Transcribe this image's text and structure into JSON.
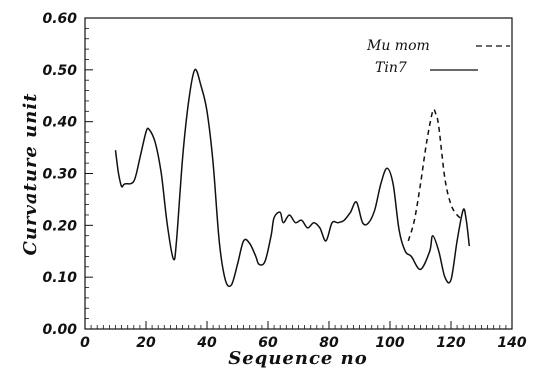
{
  "chart_data": {
    "type": "line",
    "title": "",
    "xlabel": "Sequence no",
    "ylabel": "Curvature unit",
    "xlim": [
      0,
      140
    ],
    "ylim": [
      0.0,
      0.6
    ],
    "x_ticks": [
      0,
      20,
      40,
      60,
      80,
      100,
      120,
      140
    ],
    "y_ticks": [
      0.0,
      0.1,
      0.2,
      0.3,
      0.4,
      0.5,
      0.6
    ],
    "x_tick_labels": [
      "0",
      "20",
      "40",
      "60",
      "80",
      "100",
      "120",
      "140"
    ],
    "y_tick_labels": [
      "0.00",
      "0.10",
      "0.20",
      "0.30",
      "0.40",
      "0.50",
      "0.60"
    ],
    "grid": false,
    "legend_position": "top-right",
    "series": [
      {
        "name": "Mu mom",
        "style": "dashed",
        "color": "#111111",
        "points": [
          [
            106,
            0.17
          ],
          [
            108,
            0.21
          ],
          [
            110,
            0.28
          ],
          [
            112,
            0.36
          ],
          [
            114,
            0.42
          ],
          [
            115,
            0.415
          ],
          [
            116,
            0.39
          ],
          [
            118,
            0.29
          ],
          [
            120,
            0.24
          ],
          [
            122,
            0.22
          ],
          [
            124,
            0.21
          ]
        ]
      },
      {
        "name": "Tin7",
        "style": "solid",
        "color": "#111111",
        "points": [
          [
            10,
            0.345
          ],
          [
            11,
            0.3
          ],
          [
            12,
            0.275
          ],
          [
            13,
            0.28
          ],
          [
            16,
            0.285
          ],
          [
            18,
            0.33
          ],
          [
            20,
            0.38
          ],
          [
            21,
            0.385
          ],
          [
            23,
            0.36
          ],
          [
            25,
            0.3
          ],
          [
            27,
            0.2
          ],
          [
            29,
            0.135
          ],
          [
            30,
            0.17
          ],
          [
            32,
            0.33
          ],
          [
            34,
            0.44
          ],
          [
            36,
            0.5
          ],
          [
            38,
            0.47
          ],
          [
            40,
            0.42
          ],
          [
            42,
            0.32
          ],
          [
            44,
            0.17
          ],
          [
            46,
            0.095
          ],
          [
            48,
            0.085
          ],
          [
            50,
            0.125
          ],
          [
            52,
            0.17
          ],
          [
            54,
            0.165
          ],
          [
            56,
            0.14
          ],
          [
            57,
            0.125
          ],
          [
            59,
            0.13
          ],
          [
            61,
            0.18
          ],
          [
            62,
            0.215
          ],
          [
            64,
            0.225
          ],
          [
            65,
            0.205
          ],
          [
            67,
            0.22
          ],
          [
            69,
            0.205
          ],
          [
            71,
            0.21
          ],
          [
            73,
            0.195
          ],
          [
            75,
            0.205
          ],
          [
            77,
            0.195
          ],
          [
            79,
            0.17
          ],
          [
            81,
            0.205
          ],
          [
            83,
            0.205
          ],
          [
            85,
            0.21
          ],
          [
            87,
            0.225
          ],
          [
            89,
            0.245
          ],
          [
            91,
            0.205
          ],
          [
            93,
            0.205
          ],
          [
            95,
            0.23
          ],
          [
            97,
            0.28
          ],
          [
            99,
            0.31
          ],
          [
            101,
            0.28
          ],
          [
            103,
            0.19
          ],
          [
            105,
            0.15
          ],
          [
            107,
            0.14
          ],
          [
            110,
            0.115
          ],
          [
            113,
            0.15
          ],
          [
            114,
            0.18
          ],
          [
            116,
            0.15
          ],
          [
            118,
            0.1
          ],
          [
            120,
            0.095
          ],
          [
            122,
            0.17
          ],
          [
            124,
            0.23
          ],
          [
            125,
            0.21
          ],
          [
            126,
            0.16
          ]
        ]
      }
    ]
  }
}
